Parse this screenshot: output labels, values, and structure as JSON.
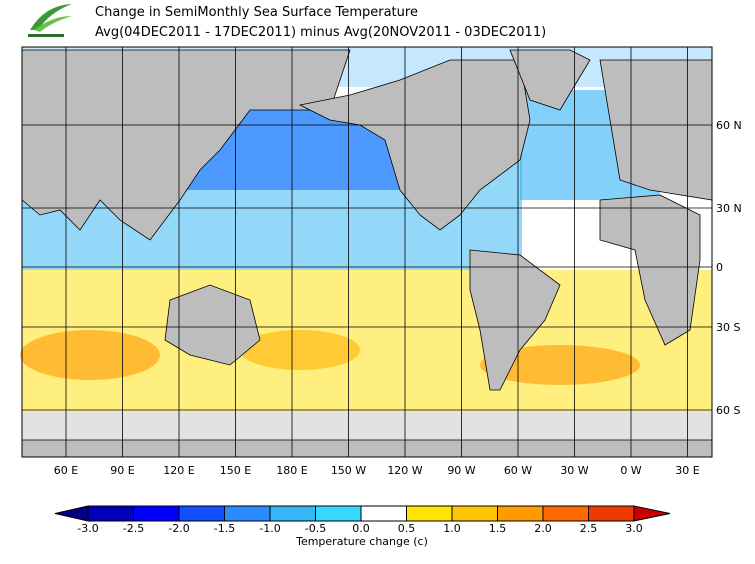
{
  "header": {
    "title": "Change in SemiMonthly Sea Surface Temperature",
    "subtitle": "Avg(04DEC2011 - 17DEC2011) minus Avg(20NOV2011 - 03DEC2011)"
  },
  "map": {
    "lon_labels": [
      "60 E",
      "90 E",
      "120 E",
      "150 E",
      "180 E",
      "150 W",
      "120 W",
      "90 W",
      "60 W",
      "30 W",
      "0 W",
      "30 E"
    ],
    "lat_labels": [
      "60 N",
      "30 N",
      "0",
      "30 S",
      "60 S"
    ]
  },
  "colorbar": {
    "label": "Temperature change  (c)",
    "ticks": [
      {
        "value": -3,
        "label": "-3.0"
      },
      {
        "value": -2.5,
        "label": "-2.5"
      },
      {
        "value": -2,
        "label": "-2.0"
      },
      {
        "value": -1.5,
        "label": "-1.5"
      },
      {
        "value": -1,
        "label": "-1.0"
      },
      {
        "value": -0.5,
        "label": "-0.5"
      },
      {
        "value": 0,
        "label": "0.0"
      },
      {
        "value": 0.5,
        "label": "0.5"
      },
      {
        "value": 1,
        "label": "1.0"
      },
      {
        "value": 1.5,
        "label": "1.5"
      },
      {
        "value": 2,
        "label": "2.0"
      },
      {
        "value": 2.5,
        "label": "2.5"
      },
      {
        "value": 3,
        "label": "3.0"
      }
    ],
    "colors": [
      "#00007f",
      "#0000b8",
      "#0000ff",
      "#1050ff",
      "#2a8cff",
      "#36b6f6",
      "#35d8ff",
      "#ffffff",
      "#ffe400",
      "#ffc400",
      "#ff9a00",
      "#ff6a00",
      "#ee3a00",
      "#c80000"
    ]
  }
}
